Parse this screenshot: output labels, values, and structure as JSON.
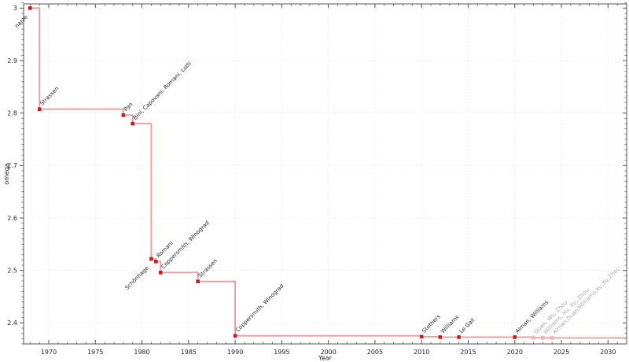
{
  "figure": {
    "background": "#ffffff"
  },
  "chart_data": {
    "type": "line",
    "subtype": "step-post",
    "title": "",
    "xlabel": "Year",
    "ylabel": "omega",
    "xlim": [
      1967.3,
      2032.0
    ],
    "ylim": [
      2.36,
      3.008
    ],
    "xticks": [
      1970,
      1975,
      1980,
      1985,
      1990,
      1995,
      2000,
      2005,
      2010,
      2015,
      2020,
      2025,
      2030
    ],
    "x_tick_labels": [
      "1970",
      "1975",
      "1980",
      "1985",
      "1990",
      "1995",
      "2000",
      "2005",
      "2010",
      "2015",
      "2020",
      "2025",
      "2030"
    ],
    "yticks": [
      2.4,
      2.5,
      2.6,
      2.7,
      2.8,
      2.9,
      3.0
    ],
    "y_tick_labels": [
      "2.4",
      "2.5",
      "2.6",
      "2.7",
      "2.8",
      "2.9",
      "3"
    ],
    "x_minor_step": 1,
    "y_minor_step": 0.01,
    "grid": true,
    "grid_style": "dotted",
    "legend": null,
    "extend_line_to_right_edge": true,
    "colors": {
      "line": "#e89c9c",
      "marker": "#bf2026",
      "faded_marker": "#f2b0b0",
      "label": "#262626",
      "faded_label": "#a8a8a8",
      "spine": "#555555",
      "tick": "#555555",
      "tick_label": "#1f1f1f",
      "grid": "#e2e2e2"
    },
    "points": [
      {
        "year": 1968,
        "omega": 3.0,
        "label": "naive",
        "label_side": "below",
        "faded": false
      },
      {
        "year": 1969,
        "omega": 2.8074,
        "label": "Strassen",
        "label_side": "above",
        "faded": false
      },
      {
        "year": 1978,
        "omega": 2.796,
        "label": "Pan",
        "label_side": "above",
        "faded": false
      },
      {
        "year": 1979,
        "omega": 2.7799,
        "label": "Bini, Capovani, Romani, Lotti",
        "label_side": "above",
        "faded": false
      },
      {
        "year": 1981,
        "omega": 2.522,
        "label": "Schönhage",
        "label_side": "below",
        "faded": false
      },
      {
        "year": 1981.5,
        "omega": 2.517,
        "label": "Romani",
        "label_side": "above",
        "faded": false
      },
      {
        "year": 1982,
        "omega": 2.496,
        "label": "Coppersmith, Winograd",
        "label_side": "above",
        "faded": false
      },
      {
        "year": 1986,
        "omega": 2.479,
        "label": "Strassen",
        "label_side": "above",
        "faded": false
      },
      {
        "year": 1990,
        "omega": 2.3755,
        "label": "Coppersmith, Winograd",
        "label_side": "above",
        "faded": false
      },
      {
        "year": 2010,
        "omega": 2.3737,
        "label": "Stothers",
        "label_side": "above",
        "faded": false
      },
      {
        "year": 2012,
        "omega": 2.3729,
        "label": "Williams",
        "label_side": "above",
        "faded": false
      },
      {
        "year": 2014,
        "omega": 2.37286,
        "label": "Le Gall",
        "label_side": "above",
        "faded": false
      },
      {
        "year": 2020,
        "omega": 2.37285,
        "label": "Alman, Williams",
        "label_side": "above",
        "faded": false
      },
      {
        "year": 2022,
        "omega": 2.37188,
        "label": "Duan, Wu, Zhou",
        "label_side": "above",
        "faded": true
      },
      {
        "year": 2023,
        "omega": 2.371552,
        "label": "Williams, Xu, Xu, Zhou",
        "label_side": "above",
        "faded": true
      },
      {
        "year": 2024,
        "omega": 2.371339,
        "label": "Alman,Duan,Williams,Xu,Xu,Zhou",
        "label_side": "above",
        "faded": true
      }
    ]
  }
}
